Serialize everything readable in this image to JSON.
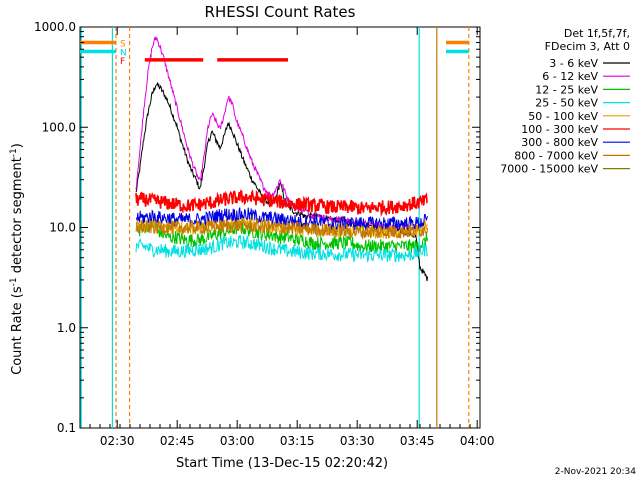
{
  "chart_data": {
    "type": "line",
    "title": "RHESSI Count Rates",
    "xlabel": "Start Time (13-Dec-15 02:20:42)",
    "ylabel_main": "Count Rate (s",
    "ylabel_sup1": "-1",
    "ylabel_mid": " detector segment",
    "ylabel_sup2": "-1",
    "ylabel_end": ")",
    "y_scale": "log",
    "ylim": [
      0.1,
      1000
    ],
    "xlim_minutes": [
      0,
      100
    ],
    "x_ticks": [
      {
        "t": 9.3,
        "label": "02:30"
      },
      {
        "t": 24.3,
        "label": "02:45"
      },
      {
        "t": 39.3,
        "label": "03:00"
      },
      {
        "t": 54.3,
        "label": "03:15"
      },
      {
        "t": 69.3,
        "label": "03:30"
      },
      {
        "t": 84.3,
        "label": "03:45"
      },
      {
        "t": 99.3,
        "label": "04:00"
      }
    ],
    "y_ticks": [
      {
        "v": 0.1,
        "label": "0.1"
      },
      {
        "v": 1,
        "label": "1.0"
      },
      {
        "v": 10,
        "label": "10.0"
      },
      {
        "v": 100,
        "label": "100.0"
      },
      {
        "v": 1000,
        "label": "1000.0"
      }
    ],
    "legend_position": "top-right",
    "legend_header": [
      "Det 1f,5f,7f,",
      "FDecim 3, Att 0"
    ],
    "series": [
      {
        "name": "3 - 6 keV",
        "color": "#000000",
        "t": [
          14,
          15,
          16,
          17,
          18,
          19,
          20,
          21,
          22,
          23,
          24,
          25,
          26,
          27,
          28,
          29,
          30,
          31,
          32,
          33,
          34,
          35,
          36,
          37,
          38,
          39,
          40,
          41,
          42,
          43,
          44,
          45,
          46,
          47,
          48,
          49,
          50,
          51,
          52,
          53,
          54,
          55,
          56,
          57,
          58,
          59,
          60,
          62,
          64,
          66,
          68,
          70,
          72,
          74,
          76,
          78,
          80,
          82,
          84,
          85,
          86,
          87
        ],
        "values": [
          22,
          40,
          80,
          140,
          210,
          270,
          250,
          215,
          180,
          140,
          110,
          80,
          60,
          45,
          36,
          30,
          24,
          40,
          70,
          90,
          75,
          62,
          80,
          110,
          95,
          72,
          58,
          45,
          37,
          30,
          26,
          22,
          19,
          18,
          17,
          20,
          28,
          20,
          16,
          15,
          14,
          14,
          13,
          13,
          13,
          13,
          13,
          12,
          12,
          12,
          11,
          11,
          11,
          10,
          10,
          10,
          9,
          9,
          8,
          4,
          3.5,
          3
        ]
      },
      {
        "name": "6 - 12 keV",
        "color": "#e000e0",
        "t": [
          14,
          15,
          16,
          17,
          18,
          19,
          20,
          21,
          22,
          23,
          24,
          25,
          26,
          27,
          28,
          29,
          30,
          31,
          32,
          33,
          34,
          35,
          36,
          37,
          38,
          39,
          40,
          41,
          42,
          43,
          44,
          45,
          46,
          47,
          48,
          49,
          50,
          51,
          52,
          53,
          54,
          55,
          56,
          57,
          58,
          59,
          60,
          62,
          64,
          66,
          68,
          70,
          72,
          74,
          76,
          78,
          80,
          82,
          84
        ],
        "values": [
          25,
          60,
          160,
          350,
          620,
          800,
          640,
          480,
          340,
          240,
          170,
          120,
          85,
          60,
          45,
          35,
          28,
          50,
          100,
          135,
          115,
          95,
          130,
          200,
          175,
          120,
          95,
          75,
          58,
          45,
          37,
          30,
          25,
          22,
          21,
          24,
          30,
          24,
          19,
          17,
          16,
          15,
          15,
          14,
          13,
          13,
          13,
          12,
          12,
          12,
          11,
          11,
          11,
          11,
          10,
          10,
          10,
          10,
          10
        ]
      },
      {
        "name": "12 - 25 keV",
        "color": "#00c000",
        "t": [
          14,
          16,
          18,
          20,
          22,
          24,
          26,
          28,
          30,
          32,
          34,
          36,
          38,
          40,
          42,
          44,
          46,
          48,
          50,
          52,
          54,
          56,
          58,
          60,
          62,
          64,
          66,
          68,
          70,
          72,
          74,
          76,
          78,
          80,
          82,
          84,
          86,
          87
        ],
        "values": [
          9,
          10,
          11,
          9,
          8,
          8,
          7.5,
          7.5,
          7.5,
          8,
          8.5,
          9,
          9.5,
          10,
          9.5,
          9,
          8.5,
          8.5,
          8,
          8,
          7.5,
          7.5,
          7,
          7,
          7,
          7,
          7,
          7,
          6.5,
          6.5,
          6.5,
          6.5,
          6.5,
          6.5,
          6.5,
          6.5,
          7,
          8
        ]
      },
      {
        "name": "25 - 50 keV",
        "color": "#00e0e0",
        "t": [
          14,
          16,
          18,
          20,
          22,
          24,
          26,
          28,
          30,
          32,
          34,
          36,
          38,
          40,
          42,
          44,
          46,
          48,
          50,
          52,
          54,
          56,
          58,
          60,
          62,
          64,
          66,
          68,
          70,
          72,
          74,
          76,
          78,
          80,
          82,
          84,
          86,
          87
        ],
        "values": [
          6.5,
          6.5,
          6,
          6,
          5.8,
          5.8,
          5.8,
          6,
          6,
          6.2,
          6.5,
          7,
          7,
          7.2,
          7,
          6.8,
          6.5,
          6.2,
          6,
          5.8,
          5.7,
          5.6,
          5.5,
          5.5,
          5.5,
          5.4,
          5.4,
          5.4,
          5.3,
          5.3,
          5.3,
          5.3,
          5.3,
          5.3,
          5.3,
          5.5,
          6,
          6
        ]
      },
      {
        "name": "50 - 100 keV",
        "color": "#e8a000",
        "t": [
          14,
          16,
          18,
          20,
          22,
          24,
          26,
          28,
          30,
          32,
          34,
          36,
          38,
          40,
          42,
          44,
          46,
          48,
          50,
          52,
          54,
          56,
          58,
          60,
          62,
          64,
          66,
          68,
          70,
          72,
          74,
          76,
          78,
          80,
          82,
          84,
          86,
          87
        ],
        "values": [
          10.5,
          10.5,
          10.5,
          10,
          10,
          10,
          10,
          10,
          10,
          10.2,
          10.5,
          11,
          11,
          11,
          11,
          10.8,
          10.5,
          10.2,
          10,
          10,
          9.8,
          9.7,
          9.6,
          9.5,
          9.5,
          9.4,
          9.4,
          9.3,
          9.2,
          9.2,
          9.1,
          9.1,
          9,
          9,
          9,
          9.2,
          10,
          11
        ]
      },
      {
        "name": "100 - 300 keV",
        "color": "#ff0000",
        "t": [
          14,
          16,
          18,
          20,
          22,
          24,
          26,
          28,
          30,
          32,
          34,
          36,
          38,
          40,
          42,
          44,
          46,
          48,
          50,
          52,
          54,
          56,
          58,
          60,
          62,
          64,
          66,
          68,
          70,
          72,
          74,
          76,
          78,
          80,
          82,
          84,
          86,
          87
        ],
        "values": [
          19,
          19,
          18.5,
          18,
          17.5,
          17,
          16.5,
          16.5,
          17,
          17.5,
          18,
          19,
          19.5,
          20,
          20,
          19.5,
          19,
          18.5,
          18,
          17.5,
          17,
          17,
          16.5,
          16.5,
          16,
          16,
          16,
          16,
          15.5,
          15.5,
          16,
          16,
          16,
          16.5,
          17,
          17.5,
          18,
          19
        ]
      },
      {
        "name": "300 - 800 keV",
        "color": "#0000e0",
        "t": [
          14,
          16,
          18,
          20,
          22,
          24,
          26,
          28,
          30,
          32,
          34,
          36,
          38,
          40,
          42,
          44,
          46,
          48,
          50,
          52,
          54,
          56,
          58,
          60,
          62,
          64,
          66,
          68,
          70,
          72,
          74,
          76,
          78,
          80,
          82,
          84,
          86,
          87
        ],
        "values": [
          12.5,
          12.5,
          13,
          12.5,
          12.5,
          12,
          12,
          12,
          12,
          12.5,
          13,
          13.5,
          13.5,
          13.5,
          13.5,
          13,
          12.5,
          12.5,
          12,
          12,
          11.5,
          11.5,
          11.5,
          11.5,
          11,
          11,
          11,
          11,
          11,
          11,
          11,
          11,
          11,
          11,
          11,
          11,
          11.5,
          12
        ]
      },
      {
        "name": "800 - 7000 keV",
        "color": "#c07800",
        "t": [
          14,
          20,
          30,
          40,
          50,
          60,
          70,
          80,
          86,
          87
        ],
        "values": [
          10,
          10,
          10,
          10.5,
          10,
          9.5,
          9,
          9,
          9.5,
          10
        ]
      },
      {
        "name": "7000 - 15000 keV",
        "color": "#808000",
        "t": [],
        "values": []
      }
    ],
    "intervals": [
      {
        "label": "S",
        "color": "#ff8000",
        "value": 700,
        "segments": [
          [
            0,
            9.0
          ],
          [
            91.5,
            97.2
          ]
        ]
      },
      {
        "label": "N",
        "color": "#00e0e0",
        "value": 570,
        "segments": [
          [
            0,
            9.0
          ],
          [
            91.5,
            97.2
          ]
        ]
      },
      {
        "label": "F",
        "color": "#ff0000",
        "value": 470,
        "segments": [
          [
            16.2,
            30.8
          ],
          [
            34.3,
            52.0
          ]
        ]
      }
    ],
    "vlines": [
      {
        "t": 0.3,
        "color": "#00e0e0",
        "dash": false
      },
      {
        "t": 8.1,
        "color": "#00e0e0",
        "dash": false
      },
      {
        "t": 9.0,
        "color": "#ff8000",
        "dash": true
      },
      {
        "t": 12.4,
        "color": "#ff8000",
        "dash": true
      },
      {
        "t": 84.8,
        "color": "#00e0e0",
        "dash": false
      },
      {
        "t": 89.2,
        "color": "#c07800",
        "dash": false
      },
      {
        "t": 97.2,
        "color": "#ff8000",
        "dash": true
      }
    ],
    "footer": "2-Nov-2021 20:34"
  }
}
